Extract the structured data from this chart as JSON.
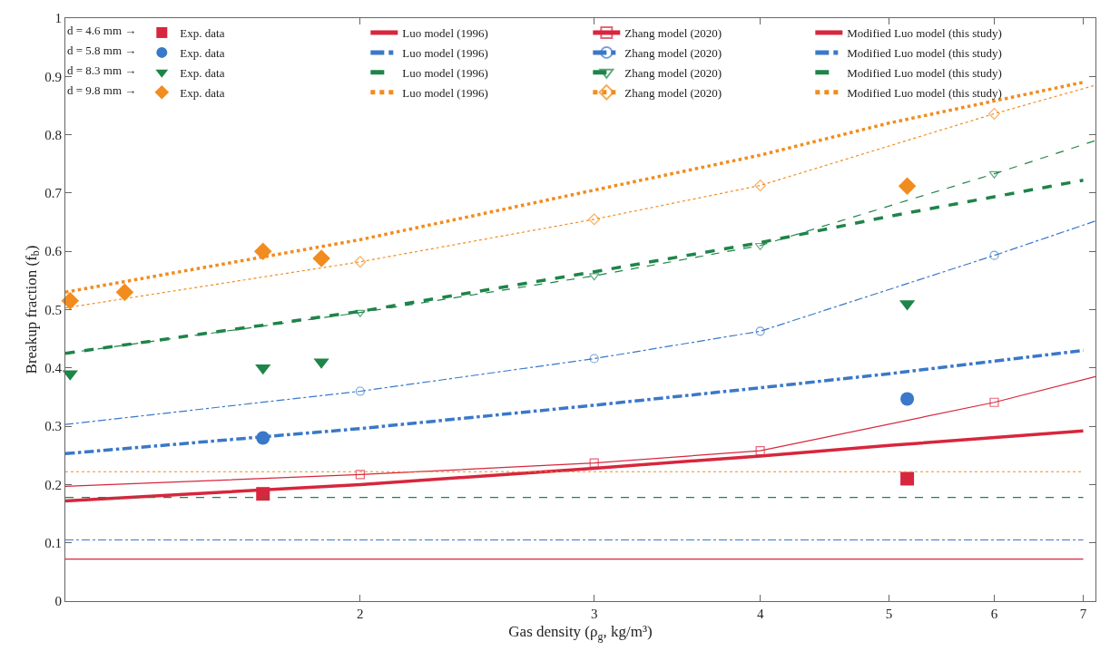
{
  "chart_data": {
    "type": "line",
    "xlabel": "Gas density (ρ$_{g}$, kg/m³)",
    "ylabel": "Breakup fraction (f$_{b}$)",
    "log": "x",
    "xlim": [
      1.2,
      7.15
    ],
    "xticks": [
      2,
      3,
      4,
      5,
      6,
      7
    ],
    "ylim": [
      0,
      1
    ],
    "yticks": [
      0,
      0.1,
      0.2,
      0.3,
      0.4,
      0.5,
      0.6,
      0.7,
      0.8,
      0.9,
      1
    ],
    "legend": "top left",
    "legend_title": [
      "d = 4.6 mm →",
      "d = 5.8 mm →",
      "d = 8.3 mm →",
      "d = 9.8 mm →"
    ],
    "series": [
      {
        "name": "Exp. data",
        "type": "scatter",
        "color": "#d7263d",
        "marker": "square",
        "x": [
          1.69,
          5.16
        ],
        "values": [
          0.184,
          0.21
        ]
      },
      {
        "name": "Luo model (1996)",
        "color": "#d7263d",
        "marker": "none",
        "line_style": "solid",
        "x": [
          1.2,
          7.0
        ],
        "values": [
          0.072,
          0.072
        ]
      },
      {
        "name": "Zhang model (2020)",
        "color": "#d7263d",
        "marker": "square",
        "line_style": "solid",
        "x": [
          1.2,
          2,
          3,
          4,
          6,
          7.15
        ],
        "values": [
          0.197,
          0.217,
          0.237,
          0.258,
          0.341,
          0.385
        ]
      },
      {
        "name": "Modified Luo model (this study)",
        "color": "#d7263d",
        "marker": "none",
        "line_style": "solid",
        "x": [
          1.2,
          2,
          3,
          4,
          5,
          7
        ],
        "values": [
          0.172,
          0.2,
          0.228,
          0.249,
          0.267,
          0.292
        ]
      },
      {
        "name": "Exp. data",
        "type": "scatter",
        "color": "#3a78c9",
        "marker": "circle",
        "x": [
          1.69,
          5.16
        ],
        "values": [
          0.28,
          0.347
        ]
      },
      {
        "name": "Luo model (1996)",
        "color": "#3a78c9",
        "marker": "none",
        "line_style": "dashdot",
        "x": [
          1.2,
          7.0
        ],
        "values": [
          0.105,
          0.105
        ]
      },
      {
        "name": "Zhang model (2020)",
        "color": "#3a78c9",
        "marker": "circle",
        "line_style": "dashdot",
        "x": [
          1.2,
          2,
          3,
          4,
          6,
          7.15
        ],
        "values": [
          0.303,
          0.36,
          0.416,
          0.463,
          0.593,
          0.652
        ]
      },
      {
        "name": "Modified Luo model (this study)",
        "color": "#3a78c9",
        "marker": "none",
        "line_style": "dashdot",
        "x": [
          1.2,
          2,
          3,
          4,
          5,
          7
        ],
        "values": [
          0.253,
          0.296,
          0.336,
          0.366,
          0.39,
          0.43
        ]
      },
      {
        "name": "Exp. data",
        "type": "scatter",
        "color": "#1e8449",
        "marker": "triangle",
        "x": [
          1.21,
          1.69,
          1.87,
          5.16
        ],
        "values": [
          0.39,
          0.4,
          0.41,
          0.51
        ]
      },
      {
        "name": "Luo model (1996)",
        "color": "#1e8449",
        "marker": "none",
        "line_style": "dashed",
        "x": [
          1.2,
          7.0
        ],
        "values": [
          0.178,
          0.178
        ]
      },
      {
        "name": "Zhang model (2020)",
        "color": "#1e8449",
        "marker": "triangle",
        "line_style": "dashed",
        "x": [
          1.2,
          2,
          3,
          4,
          6,
          7.15
        ],
        "values": [
          0.425,
          0.495,
          0.558,
          0.61,
          0.733,
          0.79
        ]
      },
      {
        "name": "Modified Luo model (this study)",
        "color": "#1e8449",
        "marker": "none",
        "line_style": "dashed",
        "x": [
          1.2,
          2,
          3,
          4,
          5,
          7
        ],
        "values": [
          0.425,
          0.497,
          0.565,
          0.615,
          0.66,
          0.722
        ]
      },
      {
        "name": "Exp. data",
        "type": "scatter",
        "color": "#f28c1e",
        "marker": "diamond",
        "x": [
          1.21,
          1.33,
          1.69,
          1.87,
          5.16
        ],
        "values": [
          0.515,
          0.53,
          0.6,
          0.588,
          0.712
        ]
      },
      {
        "name": "Luo model (1996)",
        "color": "#f28c1e",
        "marker": "none",
        "line_style": "dotted",
        "x": [
          1.2,
          7.0
        ],
        "values": [
          0.222,
          0.222
        ]
      },
      {
        "name": "Zhang model (2020)",
        "color": "#f28c1e",
        "marker": "diamond",
        "line_style": "dotted",
        "x": [
          1.2,
          2,
          3,
          4,
          6,
          7.15
        ],
        "values": [
          0.503,
          0.582,
          0.655,
          0.713,
          0.836,
          0.885
        ]
      },
      {
        "name": "Modified Luo model (this study)",
        "color": "#f28c1e",
        "marker": "none",
        "line_style": "dotted",
        "x": [
          1.2,
          2,
          3,
          4,
          5,
          7
        ],
        "values": [
          0.53,
          0.62,
          0.705,
          0.765,
          0.82,
          0.89
        ]
      }
    ]
  }
}
